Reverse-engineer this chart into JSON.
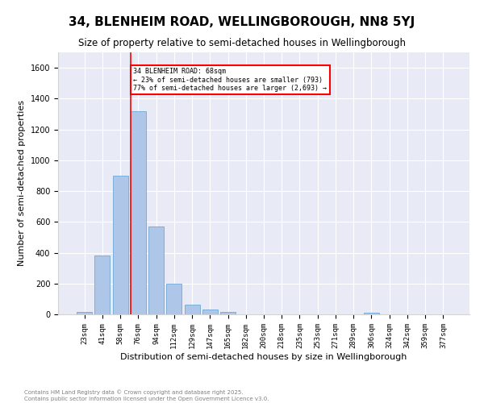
{
  "title": "34, BLENHEIM ROAD, WELLINGBOROUGH, NN8 5YJ",
  "subtitle": "Size of property relative to semi-detached houses in Wellingborough",
  "xlabel": "Distribution of semi-detached houses by size in Wellingborough",
  "ylabel": "Number of semi-detached properties",
  "bins": [
    "23sqm",
    "41sqm",
    "58sqm",
    "76sqm",
    "94sqm",
    "112sqm",
    "129sqm",
    "147sqm",
    "165sqm",
    "182sqm",
    "200sqm",
    "218sqm",
    "235sqm",
    "253sqm",
    "271sqm",
    "289sqm",
    "306sqm",
    "324sqm",
    "342sqm",
    "359sqm",
    "377sqm"
  ],
  "values": [
    15,
    380,
    900,
    1320,
    570,
    200,
    65,
    30,
    15,
    0,
    0,
    0,
    0,
    0,
    0,
    0,
    10,
    0,
    0,
    0,
    0
  ],
  "bar_color": "#aec6e8",
  "bar_edge_color": "#5a9fd4",
  "highlight_line_color": "red",
  "annotation_text": "34 BLENHEIM ROAD: 68sqm\n← 23% of semi-detached houses are smaller (793)\n77% of semi-detached houses are larger (2,693) →",
  "annotation_box_color": "white",
  "annotation_edge_color": "red",
  "ylim": [
    0,
    1700
  ],
  "background_color": "#e8eaf6",
  "footer_text": "Contains HM Land Registry data © Crown copyright and database right 2025.\nContains public sector information licensed under the Open Government Licence v3.0.",
  "title_fontsize": 11,
  "subtitle_fontsize": 8.5,
  "tick_fontsize": 6.5,
  "ylabel_fontsize": 8,
  "xlabel_fontsize": 8,
  "footer_fontsize": 5
}
